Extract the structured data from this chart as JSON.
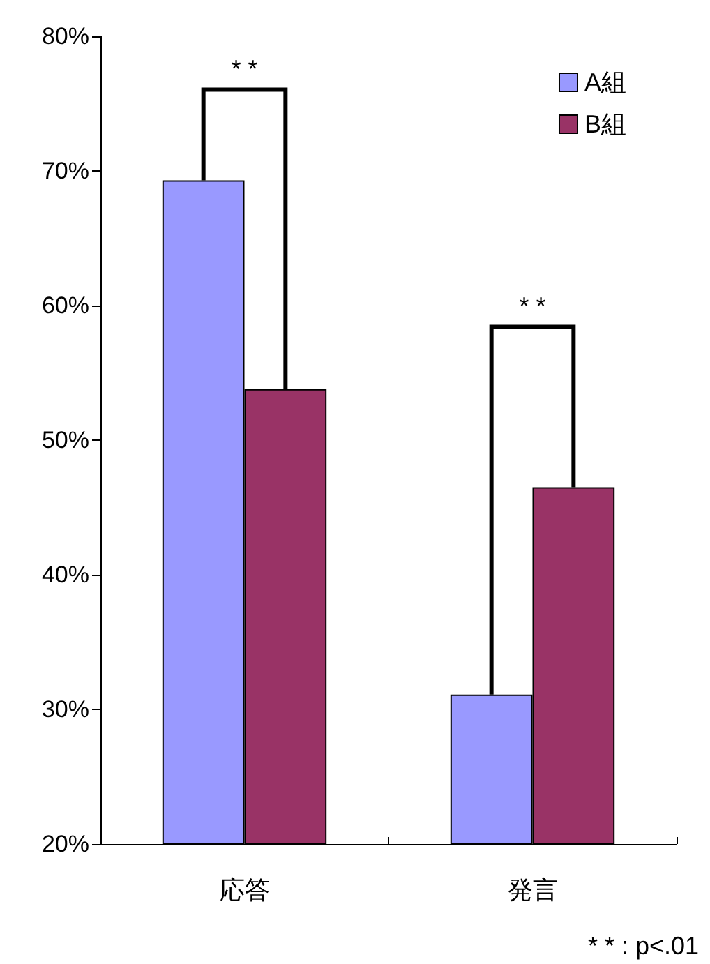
{
  "chart_data": {
    "type": "bar",
    "categories": [
      "応答",
      "発言"
    ],
    "series": [
      {
        "name": "A組",
        "color": "#9999ff",
        "values": [
          69.3,
          31.1
        ]
      },
      {
        "name": "B組",
        "color": "#993366",
        "values": [
          53.8,
          46.5
        ]
      }
    ],
    "ylim": [
      20,
      80
    ],
    "yticks": [
      {
        "value": 20,
        "label": "20%"
      },
      {
        "value": 30,
        "label": "30%"
      },
      {
        "value": 40,
        "label": "40%"
      },
      {
        "value": 50,
        "label": "50%"
      },
      {
        "value": 60,
        "label": "60%"
      },
      {
        "value": 70,
        "label": "70%"
      },
      {
        "value": 80,
        "label": "80%"
      }
    ],
    "grid": false,
    "legend": "top right",
    "annotations": [
      "* *",
      "* *",
      "* * : p<.01"
    ]
  }
}
